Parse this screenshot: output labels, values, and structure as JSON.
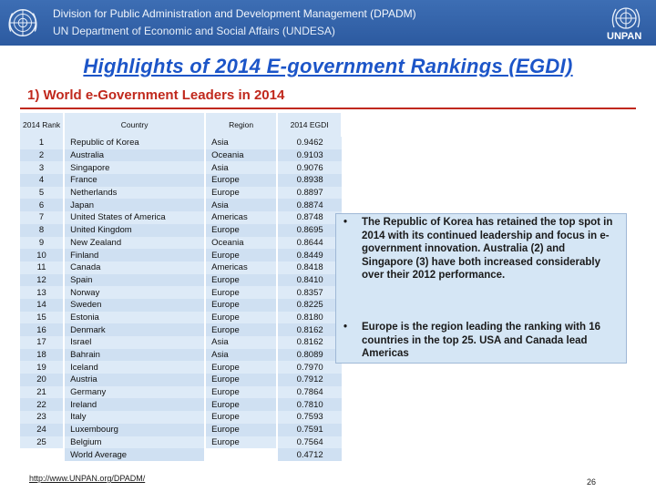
{
  "header": {
    "line1": "Division for Public Administration and Development Management (DPADM)",
    "line2": "UN Department of Economic and Social Affairs (UNDESA)",
    "right_logo_text": "UNPAN"
  },
  "title": "Highlights of 2014 E-government Rankings (EGDI)",
  "subtitle": "1) World e-Government Leaders in 2014",
  "table": {
    "headers": [
      "2014 Rank",
      "Country",
      "Region",
      "2014 EGDI"
    ],
    "rows": [
      [
        "1",
        "Republic of Korea",
        "Asia",
        "0.9462"
      ],
      [
        "2",
        "Australia",
        "Oceania",
        "0.9103"
      ],
      [
        "3",
        "Singapore",
        "Asia",
        "0.9076"
      ],
      [
        "4",
        "France",
        "Europe",
        "0.8938"
      ],
      [
        "5",
        "Netherlands",
        "Europe",
        "0.8897"
      ],
      [
        "6",
        "Japan",
        "Asia",
        "0.8874"
      ],
      [
        "7",
        "United States of America",
        "Americas",
        "0.8748"
      ],
      [
        "8",
        "United Kingdom",
        "Europe",
        "0.8695"
      ],
      [
        "9",
        "New Zealand",
        "Oceania",
        "0.8644"
      ],
      [
        "10",
        "Finland",
        "Europe",
        "0.8449"
      ],
      [
        "11",
        "Canada",
        "Americas",
        "0.8418"
      ],
      [
        "12",
        "Spain",
        "Europe",
        "0.8410"
      ],
      [
        "13",
        "Norway",
        "Europe",
        "0.8357"
      ],
      [
        "14",
        "Sweden",
        "Europe",
        "0.8225"
      ],
      [
        "15",
        "Estonia",
        "Europe",
        "0.8180"
      ],
      [
        "16",
        "Denmark",
        "Europe",
        "0.8162"
      ],
      [
        "17",
        "Israel",
        "Asia",
        "0.8162"
      ],
      [
        "18",
        "Bahrain",
        "Asia",
        "0.8089"
      ],
      [
        "19",
        "Iceland",
        "Europe",
        "0.7970"
      ],
      [
        "20",
        "Austria",
        "Europe",
        "0.7912"
      ],
      [
        "21",
        "Germany",
        "Europe",
        "0.7864"
      ],
      [
        "22",
        "Ireland",
        "Europe",
        "0.7810"
      ],
      [
        "23",
        "Italy",
        "Europe",
        "0.7593"
      ],
      [
        "24",
        "Luxembourg",
        "Europe",
        "0.7591"
      ],
      [
        "25",
        "Belgium",
        "Europe",
        "0.7564"
      ]
    ],
    "average_label": "World Average",
    "average_value": "0.4712"
  },
  "bullets": [
    {
      "marker": "•",
      "text": "The Republic of Korea has retained the top spot in 2014 with its continued leadership and focus in e-government innovation. Australia (2) and Singapore (3) have both increased considerably over their 2012 performance."
    },
    {
      "marker": "•",
      "text": "Europe is the region leading the ranking with 16 countries in the top 25. USA and Canada lead Americas"
    }
  ],
  "footer": {
    "url": "http://www.UNPAN.org/DPADM/",
    "page_number": "26"
  },
  "colors": {
    "header_bg": "#2c5aa0",
    "title": "#1c55c8",
    "subtitle": "#c0281c",
    "table_cell": "#ddeaf7",
    "bullet_box": "#d5e6f5"
  }
}
